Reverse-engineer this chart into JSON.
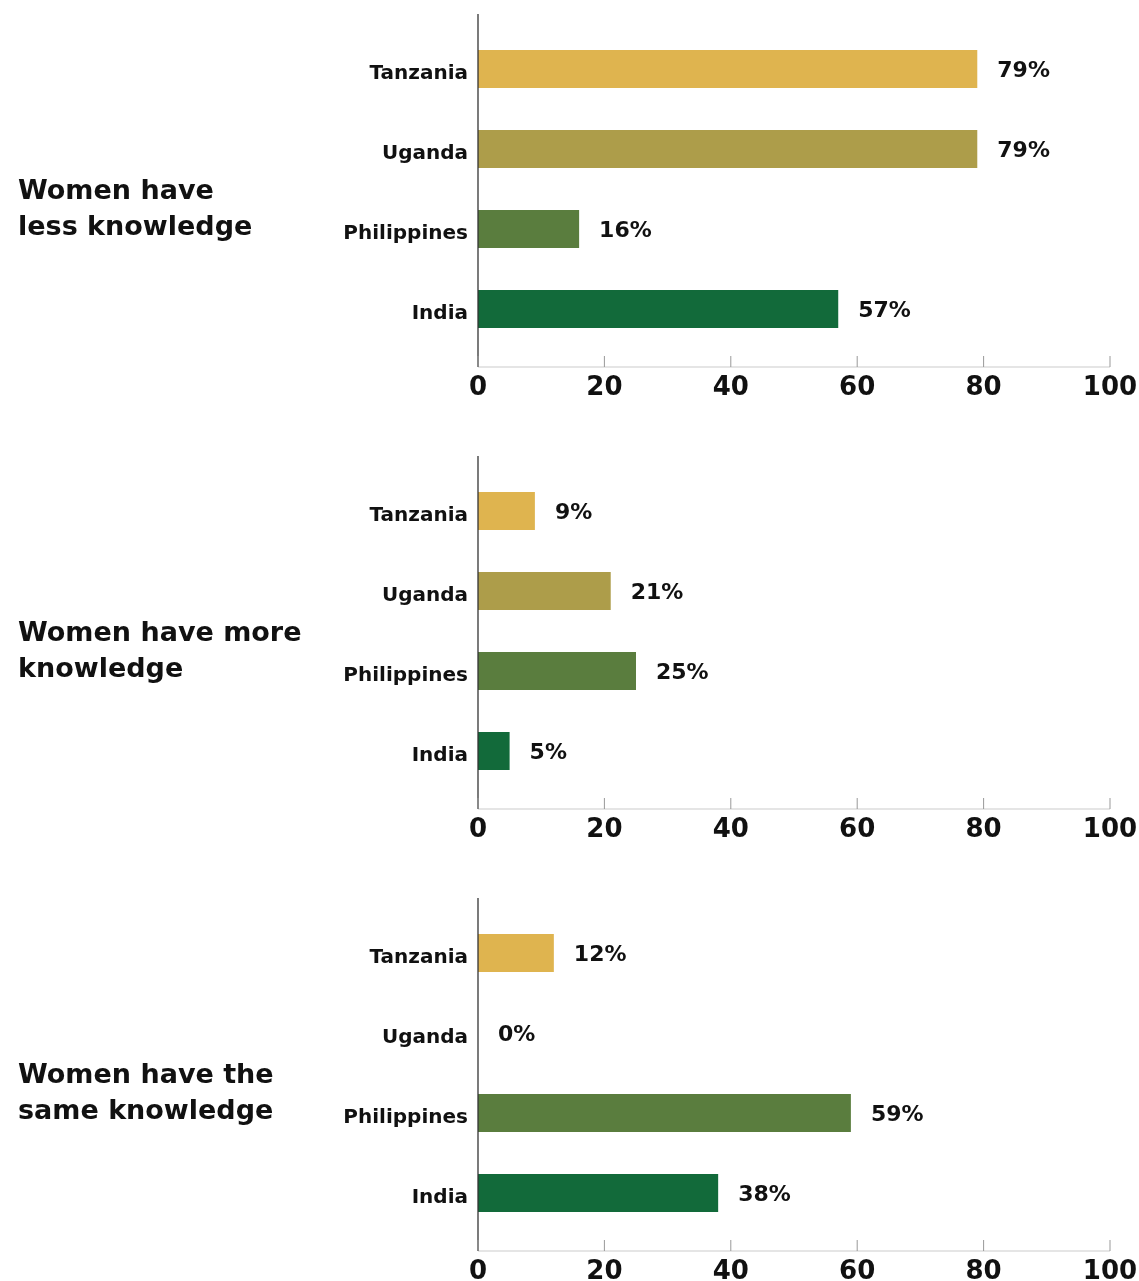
{
  "chart_data": [
    {
      "type": "bar",
      "orientation": "horizontal",
      "title": "Women have\nless knowledge",
      "categories": [
        "Tanzania",
        "Uganda",
        "Philippines",
        "India"
      ],
      "values": [
        79,
        79,
        16,
        57
      ],
      "colors": [
        "#dfb44f",
        "#ad9d4a",
        "#5a7d3e",
        "#126a3a"
      ],
      "value_labels": [
        "79%",
        "79%",
        "16%",
        "57%"
      ],
      "xlim": [
        0,
        100
      ],
      "xticks": [
        0,
        20,
        40,
        60,
        80,
        100
      ]
    },
    {
      "type": "bar",
      "orientation": "horizontal",
      "title": "Women have more\nknowledge",
      "categories": [
        "Tanzania",
        "Uganda",
        "Philippines",
        "India"
      ],
      "values": [
        9,
        21,
        25,
        5
      ],
      "colors": [
        "#dfb44f",
        "#ad9d4a",
        "#5a7d3e",
        "#126a3a"
      ],
      "value_labels": [
        "9%",
        "21%",
        "25%",
        "5%"
      ],
      "xlim": [
        0,
        100
      ],
      "xticks": [
        0,
        20,
        40,
        60,
        80,
        100
      ]
    },
    {
      "type": "bar",
      "orientation": "horizontal",
      "title": "Women have the\nsame knowledge",
      "categories": [
        "Tanzania",
        "Uganda",
        "Philippines",
        "India"
      ],
      "values": [
        12,
        0,
        59,
        38
      ],
      "colors": [
        "#dfb44f",
        "#ad9d4a",
        "#5a7d3e",
        "#126a3a"
      ],
      "value_labels": [
        "12%",
        "0%",
        "59%",
        "38%"
      ],
      "xlim": [
        0,
        100
      ],
      "xticks": [
        0,
        20,
        40,
        60,
        80,
        100
      ]
    }
  ]
}
